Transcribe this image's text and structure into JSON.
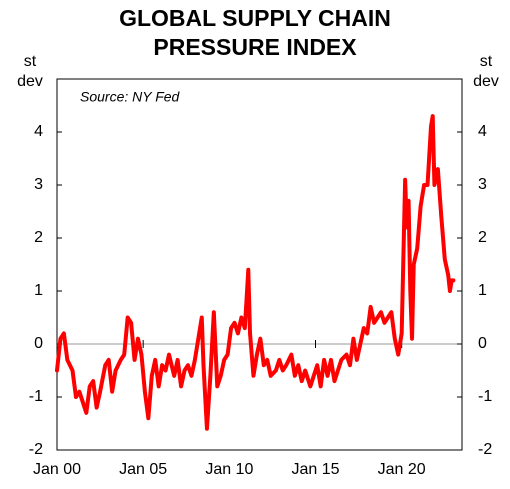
{
  "chart_data": {
    "type": "line",
    "title": [
      "GLOBAL SUPPLY CHAIN",
      "PRESSURE INDEX"
    ],
    "y_label": [
      "st",
      "dev"
    ],
    "y2_label": [
      "st",
      "dev"
    ],
    "annotation": "Source: NY Fed",
    "xlim": [
      2000,
      2023.5
    ],
    "xticks": [
      {
        "value": 2000,
        "label": "Jan 00"
      },
      {
        "value": 2005,
        "label": "Jan 05"
      },
      {
        "value": 2010,
        "label": "Jan 10"
      },
      {
        "value": 2015,
        "label": "Jan 15"
      },
      {
        "value": 2020,
        "label": "Jan 20"
      }
    ],
    "ylim": [
      -2,
      5
    ],
    "yticks": [
      -2,
      -1,
      0,
      1,
      2,
      3,
      4
    ],
    "y2lim": [
      -2,
      5
    ],
    "y2ticks": [
      -2,
      -1,
      0,
      1,
      2,
      3,
      4
    ],
    "x": [
      2000.0,
      2000.2,
      2000.4,
      2000.6,
      2000.9,
      2001.1,
      2001.3,
      2001.5,
      2001.7,
      2001.9,
      2002.1,
      2002.3,
      2002.5,
      2002.8,
      2003.0,
      2003.2,
      2003.4,
      2003.7,
      2003.9,
      2004.1,
      2004.3,
      2004.5,
      2004.7,
      2004.9,
      2005.1,
      2005.3,
      2005.5,
      2005.7,
      2005.9,
      2006.1,
      2006.3,
      2006.5,
      2006.8,
      2007.0,
      2007.2,
      2007.4,
      2007.6,
      2007.8,
      2008.0,
      2008.2,
      2008.4,
      2008.5,
      2008.7,
      2008.9,
      2009.1,
      2009.3,
      2009.5,
      2009.7,
      2009.9,
      2010.1,
      2010.3,
      2010.5,
      2010.7,
      2010.9,
      2011.1,
      2011.2,
      2011.4,
      2011.6,
      2011.8,
      2012.0,
      2012.2,
      2012.4,
      2012.7,
      2012.9,
      2013.1,
      2013.3,
      2013.6,
      2013.8,
      2014.0,
      2014.2,
      2014.4,
      2014.7,
      2014.9,
      2015.1,
      2015.3,
      2015.5,
      2015.7,
      2015.9,
      2016.1,
      2016.3,
      2016.5,
      2016.8,
      2017.0,
      2017.2,
      2017.4,
      2017.6,
      2017.8,
      2018.0,
      2018.2,
      2018.4,
      2018.6,
      2018.8,
      2019.0,
      2019.2,
      2019.4,
      2019.6,
      2019.8,
      2020.0,
      2020.2,
      2020.3,
      2020.4,
      2020.5,
      2020.6,
      2020.7,
      2020.9,
      2021.1,
      2021.3,
      2021.5,
      2021.7,
      2021.8,
      2021.9,
      2022.1,
      2022.3,
      2022.5,
      2022.7,
      2022.8,
      2022.9,
      2023.0
    ],
    "series": [
      {
        "color": "#ff0000",
        "values": [
          -0.5,
          0.1,
          0.2,
          -0.3,
          -0.5,
          -1.0,
          -0.9,
          -1.1,
          -1.3,
          -0.8,
          -0.7,
          -1.2,
          -0.9,
          -0.4,
          -0.3,
          -0.9,
          -0.5,
          -0.3,
          -0.2,
          0.5,
          0.4,
          -0.3,
          0.1,
          -0.2,
          -0.9,
          -1.4,
          -0.6,
          -0.3,
          -0.8,
          -0.4,
          -0.5,
          -0.2,
          -0.6,
          -0.3,
          -0.8,
          -0.5,
          -0.4,
          -0.6,
          -0.3,
          0.1,
          0.5,
          -0.4,
          -1.6,
          -0.6,
          0.6,
          -0.8,
          -0.6,
          -0.3,
          -0.2,
          0.3,
          0.4,
          0.2,
          0.5,
          0.3,
          1.4,
          0.2,
          -0.6,
          -0.2,
          0.1,
          -0.4,
          -0.3,
          -0.6,
          -0.5,
          -0.3,
          -0.5,
          -0.4,
          -0.2,
          -0.6,
          -0.4,
          -0.7,
          -0.5,
          -0.8,
          -0.6,
          -0.4,
          -0.8,
          -0.3,
          -0.6,
          -0.3,
          -0.7,
          -0.5,
          -0.3,
          -0.2,
          -0.4,
          0.1,
          -0.3,
          0.0,
          0.3,
          0.2,
          0.7,
          0.4,
          0.5,
          0.6,
          0.4,
          0.5,
          0.6,
          0.1,
          -0.2,
          0.2,
          3.1,
          2.2,
          2.7,
          1.0,
          0.1,
          1.5,
          1.8,
          2.6,
          3.0,
          3.0,
          4.1,
          4.3,
          3.0,
          3.3,
          2.4,
          1.6,
          1.3,
          1.0,
          1.2,
          1.2
        ]
      }
    ]
  }
}
